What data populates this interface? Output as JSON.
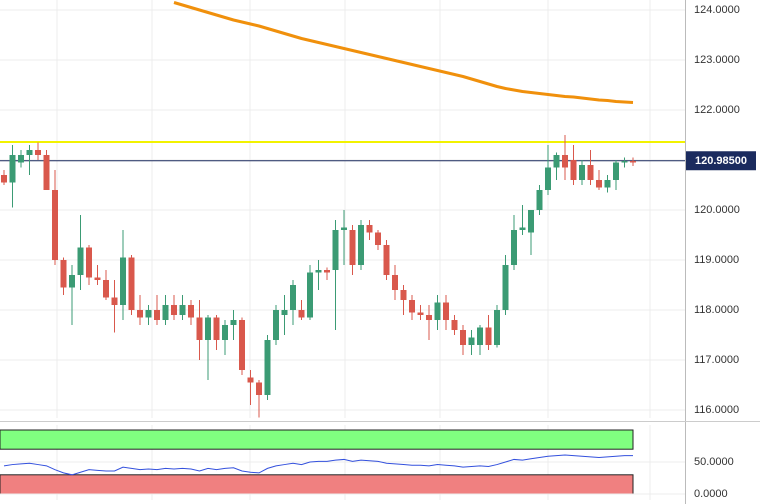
{
  "chart_data": [
    {
      "type": "candlestick",
      "open": [
        120.7,
        120.55,
        120.95,
        121.1,
        121.2,
        121.1,
        120.4,
        119.0,
        118.45,
        118.7,
        119.25,
        118.65,
        118.6,
        118.25,
        118.1,
        119.05,
        118.0,
        117.85,
        118.0,
        117.8,
        118.1,
        117.9,
        118.1,
        117.85,
        117.4,
        117.85,
        117.4,
        117.7,
        117.8,
        116.65,
        116.55,
        116.3,
        117.4,
        117.9,
        118.0,
        118.0,
        117.85,
        118.75,
        118.8,
        118.8,
        119.6,
        119.6,
        118.9,
        119.7,
        119.55,
        119.3,
        118.7,
        118.4,
        118.2,
        117.95,
        117.9,
        117.8,
        118.15,
        117.8,
        117.6,
        117.3,
        117.3,
        117.65,
        117.3,
        118.0,
        118.9,
        119.6,
        119.55,
        120.0,
        120.4,
        120.85,
        121.1,
        121.0,
        120.6,
        120.9,
        120.6,
        120.45,
        120.6,
        120.95,
        120.98
      ],
      "high": [
        120.8,
        121.3,
        121.2,
        121.3,
        121.35,
        121.2,
        120.8,
        119.05,
        118.9,
        119.9,
        119.3,
        118.9,
        118.8,
        118.6,
        119.6,
        119.1,
        118.3,
        118.1,
        118.3,
        118.3,
        118.3,
        118.3,
        118.2,
        118.2,
        117.9,
        117.9,
        117.8,
        118.0,
        117.85,
        116.8,
        116.6,
        117.5,
        118.1,
        118.3,
        118.6,
        118.2,
        118.9,
        119.0,
        118.85,
        119.8,
        120.0,
        119.7,
        119.8,
        119.8,
        119.6,
        119.4,
        118.9,
        118.5,
        118.3,
        118.1,
        118.1,
        118.3,
        118.3,
        117.9,
        117.7,
        117.6,
        117.7,
        117.9,
        118.1,
        119.1,
        119.9,
        120.1,
        120.0,
        120.5,
        121.3,
        121.15,
        121.5,
        121.3,
        121.0,
        121.2,
        120.8,
        120.7,
        121.0,
        121.05,
        121.05
      ],
      "low": [
        120.5,
        120.05,
        120.85,
        120.7,
        121.0,
        120.4,
        118.9,
        118.3,
        117.7,
        118.4,
        118.5,
        118.5,
        118.2,
        117.55,
        117.8,
        117.9,
        117.7,
        117.7,
        117.7,
        117.7,
        117.8,
        117.8,
        117.7,
        117.0,
        116.6,
        117.2,
        117.1,
        117.4,
        116.7,
        116.1,
        115.85,
        116.2,
        117.3,
        117.5,
        117.7,
        117.8,
        117.8,
        118.4,
        118.6,
        117.6,
        118.9,
        118.7,
        118.8,
        119.4,
        119.2,
        118.6,
        118.2,
        117.9,
        117.8,
        117.8,
        117.4,
        117.6,
        117.6,
        117.5,
        117.1,
        117.1,
        117.1,
        117.2,
        117.25,
        117.9,
        118.8,
        119.5,
        119.1,
        119.9,
        120.3,
        120.6,
        120.6,
        120.5,
        120.5,
        120.5,
        120.4,
        120.35,
        120.4,
        120.85,
        120.88
      ],
      "close": [
        120.55,
        121.1,
        121.1,
        121.2,
        121.1,
        120.4,
        119.0,
        118.45,
        118.7,
        119.25,
        118.65,
        118.6,
        118.25,
        118.1,
        119.05,
        118.0,
        117.85,
        118.0,
        117.8,
        118.1,
        117.9,
        118.1,
        117.85,
        117.4,
        117.85,
        117.4,
        117.7,
        117.8,
        116.8,
        116.55,
        116.3,
        117.4,
        118.0,
        118.0,
        118.5,
        117.85,
        118.75,
        118.8,
        118.75,
        119.6,
        119.65,
        118.9,
        119.7,
        119.55,
        119.3,
        118.7,
        118.4,
        118.2,
        117.95,
        117.9,
        117.8,
        118.15,
        117.8,
        117.6,
        117.3,
        117.45,
        117.65,
        117.3,
        118.0,
        118.9,
        119.6,
        119.65,
        120.0,
        120.4,
        120.85,
        121.1,
        120.85,
        120.6,
        120.9,
        120.6,
        120.45,
        120.6,
        120.95,
        120.98,
        120.95
      ],
      "up_color": "#3b9b74",
      "down_color": "#d9584c",
      "moving_average": {
        "color": "#f0900c",
        "values": [
          null,
          null,
          null,
          null,
          null,
          null,
          null,
          null,
          null,
          null,
          null,
          null,
          null,
          null,
          null,
          null,
          null,
          null,
          null,
          null,
          124.15,
          124.1,
          124.05,
          124.0,
          123.95,
          123.9,
          123.85,
          123.8,
          123.76,
          123.72,
          123.68,
          123.63,
          123.58,
          123.53,
          123.48,
          123.43,
          123.39,
          123.35,
          123.31,
          123.27,
          123.23,
          123.19,
          123.15,
          123.11,
          123.07,
          123.03,
          122.99,
          122.95,
          122.91,
          122.87,
          122.83,
          122.79,
          122.75,
          122.71,
          122.67,
          122.62,
          122.57,
          122.52,
          122.47,
          122.43,
          122.4,
          122.37,
          122.35,
          122.33,
          122.31,
          122.29,
          122.27,
          122.26,
          122.24,
          122.22,
          122.2,
          122.19,
          122.17,
          122.16,
          122.15
        ]
      },
      "resistance": {
        "value": 121.36,
        "color": "#f2f200"
      },
      "last_price": {
        "value": 120.985,
        "label": "120.98500",
        "color": "#1b2b5e"
      },
      "ylim": [
        115.84,
        124.2
      ],
      "yticks": [
        {
          "value": 116,
          "label": "116.0000"
        },
        {
          "value": 117,
          "label": "117.0000"
        },
        {
          "value": 118,
          "label": "118.0000"
        },
        {
          "value": 119,
          "label": "119.0000"
        },
        {
          "value": 120,
          "label": "120.0000"
        },
        {
          "value": 121,
          "label": "121.0000"
        },
        {
          "value": 122,
          "label": "122.0000"
        },
        {
          "value": 123,
          "label": "123.0000"
        },
        {
          "value": 124,
          "label": "124.0000"
        }
      ],
      "grid": true
    },
    {
      "type": "line",
      "values": [
        44,
        46,
        47,
        48,
        46,
        44,
        38,
        33,
        30,
        34,
        38,
        37,
        36,
        36,
        42,
        40,
        38,
        39,
        38,
        40,
        39,
        40,
        39,
        36,
        40,
        38,
        40,
        41,
        36,
        34,
        33,
        40,
        44,
        46,
        48,
        46,
        50,
        51,
        51,
        53,
        54,
        51,
        53,
        52,
        51,
        48,
        47,
        46,
        45,
        45,
        44,
        46,
        45,
        44,
        42,
        43,
        44,
        43,
        46,
        50,
        54,
        53,
        55,
        57,
        59,
        60,
        61,
        60,
        59,
        58,
        57,
        58,
        59,
        60,
        60
      ],
      "color": "#3350dd",
      "bands": [
        {
          "from": 70,
          "to": 100,
          "color": "#80ff80"
        },
        {
          "from": 0,
          "to": 30,
          "color": "#f08080"
        }
      ],
      "ylim": [
        0,
        100
      ],
      "yticks": [
        {
          "value": 50,
          "label": "50.0000"
        },
        {
          "value": 0,
          "label": "0.0000"
        }
      ],
      "grid": true
    }
  ]
}
